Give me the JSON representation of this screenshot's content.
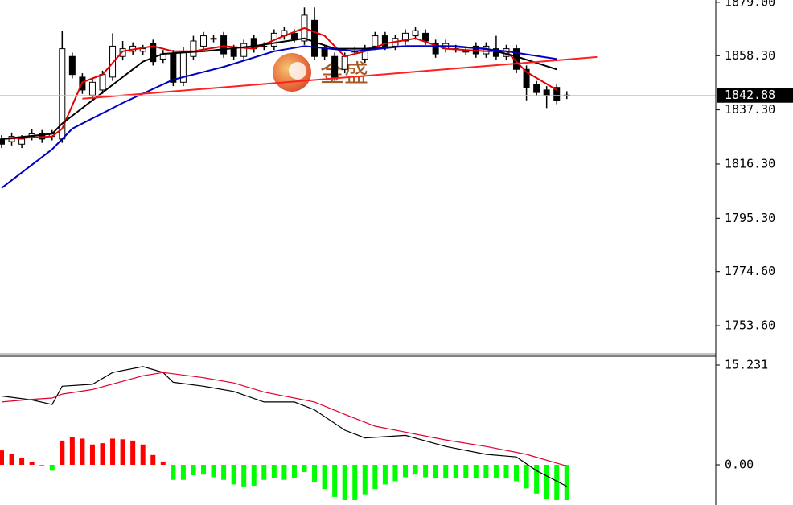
{
  "chart_data": [
    {
      "type": "candlestick",
      "watermark": "金盛",
      "xlim": [
        -0.16,
        70.76
      ],
      "ylim": [
        1742.7,
        1879.9
      ],
      "yticks": [
        {
          "value": 1879,
          "label": "1879.00"
        },
        {
          "value": 1858.3,
          "label": "1858.30"
        },
        {
          "value": 1837.3,
          "label": "1837.30"
        },
        {
          "value": 1816.3,
          "label": "1816.30"
        },
        {
          "value": 1795.3,
          "label": "1795.30"
        },
        {
          "value": 1774.6,
          "label": "1774.60"
        },
        {
          "value": 1753.6,
          "label": "1753.60"
        }
      ],
      "current_price": {
        "value": 1842.88,
        "label": "1842.88"
      },
      "up_color": "#ffffff",
      "down_color": "#000000",
      "open": [
        1826,
        1825,
        1824,
        1827,
        1828,
        1827,
        1826,
        1858,
        1850,
        1843,
        1845,
        1850,
        1858,
        1860,
        1860,
        1863,
        1857,
        1859,
        1848,
        1858,
        1862,
        1865,
        1866,
        1861,
        1858,
        1865,
        1862,
        1862,
        1866,
        1867,
        1864,
        1872,
        1861,
        1858,
        1853,
        1860,
        1857,
        1862,
        1866,
        1862,
        1864,
        1866,
        1867,
        1863,
        1861,
        1861,
        1860,
        1862,
        1859,
        1861,
        1858,
        1861,
        1853,
        1847,
        1845,
        1846,
        1843
      ],
      "high": [
        1827.5,
        1828.5,
        1827.5,
        1830,
        1829.5,
        1829.5,
        1868,
        1859.5,
        1851.5,
        1849.5,
        1852.5,
        1867,
        1864,
        1863.5,
        1862.5,
        1864.5,
        1860.5,
        1860.5,
        1861.5,
        1866,
        1867.5,
        1866.5,
        1867.5,
        1862.5,
        1864.5,
        1866.5,
        1863.5,
        1868.5,
        1869.5,
        1868.5,
        1877,
        1877,
        1862.5,
        1859.5,
        1859.5,
        1861.5,
        1862.5,
        1867.5,
        1867.5,
        1866.5,
        1868.5,
        1869.5,
        1868.5,
        1864.5,
        1864.5,
        1862.5,
        1861.5,
        1863.5,
        1863.5,
        1866,
        1862.5,
        1862.5,
        1854.5,
        1848.5,
        1846.5,
        1847.5,
        1844.5
      ],
      "low": [
        1822.5,
        1823.5,
        1822.5,
        1825.5,
        1824.5,
        1825.5,
        1824.5,
        1849.5,
        1843.5,
        1841.5,
        1843.5,
        1848.5,
        1856.5,
        1858.5,
        1858.5,
        1854.5,
        1855.5,
        1846.5,
        1846.5,
        1856.5,
        1860.5,
        1863.5,
        1857.5,
        1856.5,
        1856.5,
        1859.5,
        1860.5,
        1860.5,
        1864.5,
        1863.5,
        1862.5,
        1856.5,
        1856.5,
        1848.5,
        1851.5,
        1858.5,
        1855.5,
        1860.5,
        1860.5,
        1860.5,
        1862.5,
        1864.5,
        1862.5,
        1857.5,
        1859.5,
        1859.5,
        1858.5,
        1857.5,
        1857.5,
        1856.5,
        1856.5,
        1851.5,
        1841,
        1842.5,
        1838,
        1839.5,
        1841.5
      ],
      "close": [
        1824,
        1827,
        1826,
        1828,
        1826,
        1828,
        1861,
        1851,
        1845,
        1848,
        1851,
        1862,
        1861,
        1862,
        1861,
        1856,
        1859,
        1848,
        1860,
        1864,
        1866,
        1865,
        1859,
        1858,
        1863,
        1861,
        1862,
        1867,
        1868,
        1865,
        1874,
        1858,
        1858,
        1850,
        1858,
        1860,
        1861,
        1866,
        1862,
        1865,
        1867,
        1868,
        1864,
        1859,
        1863,
        1861,
        1860,
        1859,
        1862,
        1858,
        1861,
        1853,
        1846,
        1844,
        1843,
        1841,
        1843
      ],
      "lines": [
        {
          "color": "#e00000",
          "x": [
            0,
            5,
            6,
            8,
            10,
            12,
            15,
            17,
            19,
            22,
            25,
            28,
            30,
            32,
            34,
            36,
            38,
            41,
            44,
            48,
            50,
            52,
            55
          ],
          "values": [
            1826,
            1827,
            1830,
            1848,
            1851,
            1860,
            1862,
            1860,
            1860,
            1862,
            1861,
            1866,
            1869,
            1866,
            1858,
            1860,
            1863,
            1865,
            1861,
            1860,
            1860,
            1852,
            1845
          ]
        },
        {
          "color": "#000000",
          "x": [
            0,
            5,
            6,
            10,
            14,
            16,
            20,
            25,
            30,
            33,
            36,
            40,
            44,
            48,
            51,
            55
          ],
          "values": [
            1826,
            1828,
            1832,
            1844,
            1856,
            1859,
            1860,
            1862,
            1865,
            1861,
            1861,
            1862,
            1862,
            1861,
            1858,
            1853
          ]
        },
        {
          "color": "#0000c0",
          "x": [
            0,
            5,
            7,
            12,
            17,
            22,
            27,
            30,
            35,
            40,
            45,
            50,
            55
          ],
          "values": [
            1807,
            1822,
            1830,
            1840,
            1849,
            1854,
            1860,
            1862,
            1860,
            1862,
            1862,
            1860,
            1857
          ]
        },
        {
          "color": "#ff2020",
          "x": [
            8,
            59
          ],
          "values": [
            1841.6,
            1857.8
          ]
        }
      ]
    },
    {
      "type": "macd",
      "xlim": [
        -0.16,
        70.76
      ],
      "ylim": [
        -6.14,
        16.46
      ],
      "yticks": [
        15.231,
        {
          "value": 0,
          "label": "0.00"
        }
      ],
      "up_color": "#ff0000",
      "down_color": "#00ff00",
      "values": [
        2.2,
        1.6,
        1.0,
        0.5,
        -0.1,
        -0.9,
        3.7,
        4.3,
        4.0,
        3.1,
        3.3,
        4.0,
        3.9,
        3.7,
        3.1,
        1.5,
        0.5,
        -2.3,
        -2.3,
        -1.6,
        -1.5,
        -1.9,
        -2.3,
        -3.0,
        -3.3,
        -3.2,
        -2.3,
        -2.0,
        -2.3,
        -2.0,
        -1.1,
        -2.7,
        -3.7,
        -4.9,
        -5.4,
        -5.4,
        -4.5,
        -3.7,
        -3.0,
        -2.5,
        -1.9,
        -1.5,
        -1.9,
        -2.1,
        -2.1,
        -2.1,
        -2.0,
        -2.1,
        -2.0,
        -2.1,
        -2.1,
        -2.5,
        -3.6,
        -4.4,
        -5.2,
        -5.4,
        -5.4
      ],
      "lines": [
        {
          "color": "#000000",
          "x": [
            0,
            3,
            5,
            6,
            9,
            11,
            14,
            16,
            17,
            20,
            23,
            26,
            29,
            31,
            34,
            36,
            40,
            44,
            48,
            51,
            53,
            56
          ],
          "values": [
            10.5,
            9.9,
            9.2,
            12,
            12.3,
            14.1,
            15,
            14.1,
            12.6,
            12,
            11.2,
            9.6,
            9.6,
            8.4,
            5.3,
            4.1,
            4.5,
            2.8,
            1.6,
            1.2,
            -0.9,
            -3.3
          ]
        },
        {
          "color": "#e00030",
          "x": [
            0,
            3,
            5,
            6,
            9,
            14,
            16,
            20,
            23,
            26,
            31,
            34,
            37,
            40,
            44,
            48,
            52,
            56
          ],
          "values": [
            9.6,
            10,
            10.2,
            10.8,
            11.5,
            13.6,
            14.1,
            13.3,
            12.5,
            11.1,
            9.6,
            7.7,
            5.9,
            5.0,
            3.8,
            2.8,
            1.6,
            -0.2
          ]
        }
      ]
    }
  ]
}
